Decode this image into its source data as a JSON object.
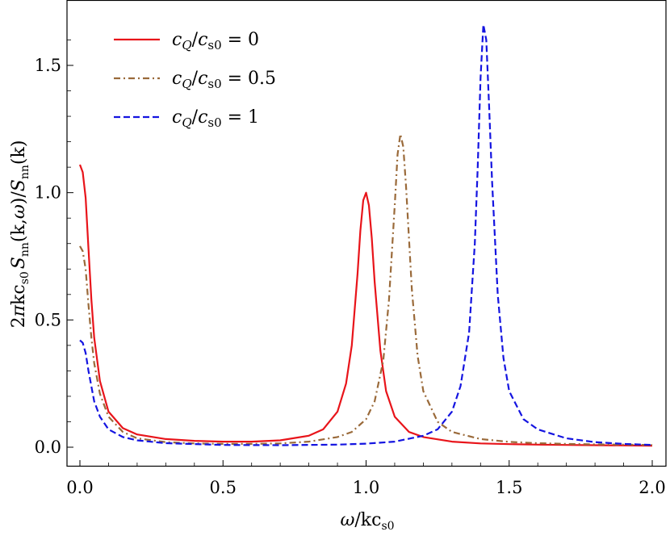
{
  "chart_data": {
    "type": "line",
    "title": "",
    "xlabel": "ω/kc_s0",
    "ylabel": "2πkc_s0 S_nn(k,ω)/S_nn(k)",
    "xlim": [
      0,
      2.0
    ],
    "ylim": [
      0,
      1.7
    ],
    "xticks": [
      "0.0",
      "0.5",
      "1.0",
      "1.5",
      "2.0"
    ],
    "yticks": [
      "0.0",
      "0.5",
      "1.0",
      "1.5"
    ],
    "xtick_values": [
      0,
      0.5,
      1.0,
      1.5,
      2.0
    ],
    "ytick_values": [
      0,
      0.5,
      1.0,
      1.5
    ],
    "grid": false,
    "legend_position": "top-left",
    "series": [
      {
        "name": "c_Q/c_s0 = 0",
        "legend_ratio": "c",
        "legend_value": "= 0",
        "color": "#e8141a",
        "dash": "solid",
        "x": [
          0.0,
          0.01,
          0.02,
          0.03,
          0.04,
          0.05,
          0.07,
          0.1,
          0.15,
          0.2,
          0.3,
          0.4,
          0.5,
          0.6,
          0.7,
          0.8,
          0.85,
          0.9,
          0.93,
          0.95,
          0.97,
          0.98,
          0.99,
          1.0,
          1.01,
          1.02,
          1.03,
          1.05,
          1.07,
          1.1,
          1.15,
          1.2,
          1.3,
          1.4,
          1.5,
          1.6,
          1.7,
          1.8,
          1.9,
          2.0
        ],
        "y": [
          1.11,
          1.08,
          0.98,
          0.78,
          0.58,
          0.43,
          0.26,
          0.14,
          0.075,
          0.05,
          0.032,
          0.025,
          0.022,
          0.022,
          0.027,
          0.045,
          0.07,
          0.14,
          0.25,
          0.4,
          0.68,
          0.85,
          0.97,
          1.0,
          0.95,
          0.82,
          0.65,
          0.38,
          0.22,
          0.12,
          0.06,
          0.04,
          0.022,
          0.015,
          0.012,
          0.01,
          0.009,
          0.008,
          0.007,
          0.006
        ]
      },
      {
        "name": "c_Q/c_s0 = 0.5",
        "legend_ratio": "c",
        "legend_value": "= 0.5",
        "color": "#9a6a3a",
        "dash": "8,4,2,4",
        "x": [
          0.0,
          0.01,
          0.02,
          0.03,
          0.04,
          0.05,
          0.07,
          0.1,
          0.15,
          0.2,
          0.3,
          0.4,
          0.5,
          0.6,
          0.7,
          0.8,
          0.9,
          0.95,
          1.0,
          1.03,
          1.06,
          1.08,
          1.1,
          1.11,
          1.12,
          1.13,
          1.14,
          1.16,
          1.18,
          1.2,
          1.25,
          1.3,
          1.4,
          1.5,
          1.6,
          1.7,
          1.8,
          1.9,
          2.0
        ],
        "y": [
          0.79,
          0.77,
          0.7,
          0.56,
          0.43,
          0.33,
          0.21,
          0.12,
          0.06,
          0.035,
          0.02,
          0.015,
          0.013,
          0.013,
          0.015,
          0.022,
          0.04,
          0.06,
          0.11,
          0.18,
          0.34,
          0.58,
          0.95,
          1.15,
          1.23,
          1.18,
          1.02,
          0.62,
          0.36,
          0.22,
          0.1,
          0.06,
          0.032,
          0.021,
          0.016,
          0.013,
          0.011,
          0.01,
          0.009
        ]
      },
      {
        "name": "c_Q/c_s0 = 1",
        "legend_ratio": "c",
        "legend_value": "= 1",
        "color": "#1414e0",
        "dash": "8,4",
        "x": [
          0.0,
          0.01,
          0.02,
          0.03,
          0.05,
          0.07,
          0.1,
          0.15,
          0.2,
          0.3,
          0.5,
          0.7,
          0.9,
          1.0,
          1.1,
          1.2,
          1.25,
          1.3,
          1.33,
          1.36,
          1.38,
          1.39,
          1.4,
          1.41,
          1.42,
          1.43,
          1.44,
          1.46,
          1.48,
          1.5,
          1.55,
          1.6,
          1.7,
          1.8,
          1.9,
          2.0
        ],
        "y": [
          0.42,
          0.41,
          0.37,
          0.3,
          0.18,
          0.12,
          0.07,
          0.04,
          0.027,
          0.016,
          0.009,
          0.008,
          0.01,
          0.014,
          0.022,
          0.045,
          0.07,
          0.14,
          0.24,
          0.45,
          0.8,
          1.1,
          1.45,
          1.66,
          1.6,
          1.34,
          1.05,
          0.6,
          0.35,
          0.22,
          0.11,
          0.07,
          0.035,
          0.02,
          0.013,
          0.009
        ]
      }
    ]
  }
}
